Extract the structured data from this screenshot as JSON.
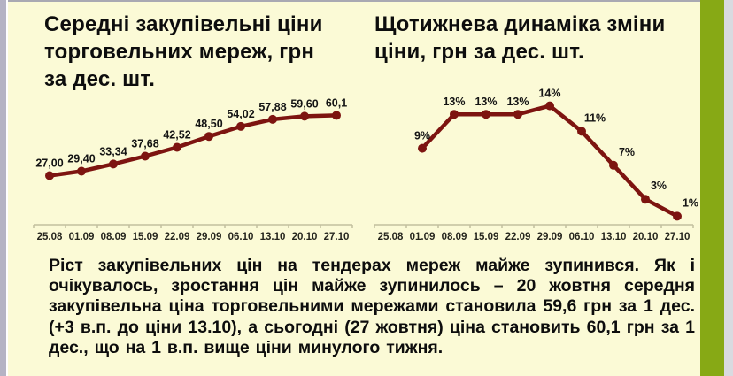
{
  "page": {
    "background": "#FBFAD6",
    "left_strip_color": "#B5B3C4",
    "green_strip_color": "#87A915",
    "right_edge_color": "#D9DAE0",
    "top_edge_color": "#A9A9B2",
    "axis_color": "#C2BF9E",
    "text_color": "#0D0D0D",
    "accent_line_color": "#7D1410"
  },
  "chart_data": [
    {
      "type": "line",
      "title": "Середні закупівельні ціни\nторговельних мереж, грн\nза дес. шт.",
      "categories": [
        "25.08",
        "01.09",
        "08.09",
        "15.09",
        "22.09",
        "29.09",
        "06.10",
        "13.10",
        "20.10",
        "27.10"
      ],
      "values": [
        27.0,
        29.4,
        33.34,
        37.68,
        42.52,
        48.5,
        54.02,
        57.88,
        59.6,
        60.1
      ],
      "value_labels": [
        "27,00",
        "29,40",
        "33,34",
        "37,68",
        "42,52",
        "48,50",
        "54,02",
        "57,88",
        "59,60",
        "60,1"
      ],
      "xlabel": "",
      "ylabel": "",
      "ylim": [
        0,
        70
      ],
      "grid": false,
      "legend": false,
      "line_color": "#7D1410"
    },
    {
      "type": "line",
      "title": "Щотижнева динаміка зміни\nціни, грн за дес. шт.",
      "categories": [
        "25.08",
        "01.09",
        "08.09",
        "15.09",
        "22.09",
        "29.09",
        "06.10",
        "13.10",
        "20.10",
        "27.10"
      ],
      "values": [
        null,
        9,
        13,
        13,
        13,
        14,
        11,
        7,
        3,
        1
      ],
      "value_labels": [
        "",
        "9%",
        "13%",
        "13%",
        "13%",
        "14%",
        "11%",
        "7%",
        "3%",
        "1%"
      ],
      "xlabel": "",
      "ylabel": "",
      "ylim": [
        0,
        15
      ],
      "grid": false,
      "legend": false,
      "line_color": "#7D1410"
    }
  ],
  "summary": {
    "text": "Ріст закупівельних цін на тендерах мереж майже зупинився. Як і очікувалось, зростання цін майже зупинилось – 20 жовтня середня закупівельна ціна торговельними мережами становила 59,6 грн за 1 дес. (+3 в.п. до ціни 13.10), а сьогодні (27 жовтня) ціна становить 60,1 грн за 1 дес., що на 1 в.п. вище ціни минулого тижня."
  }
}
